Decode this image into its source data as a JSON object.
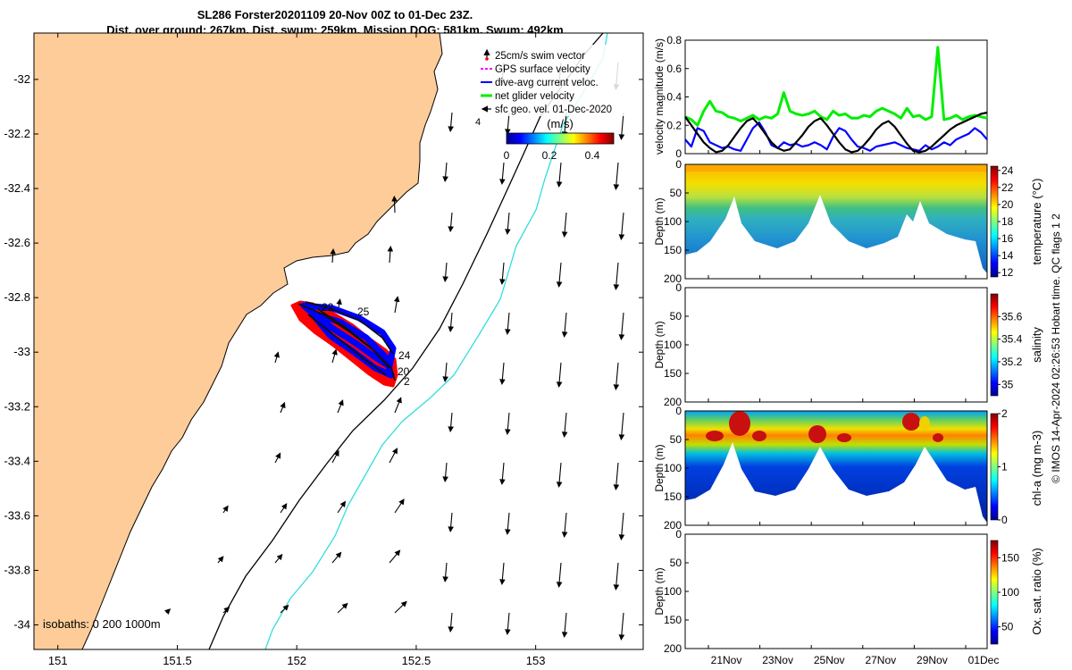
{
  "title": {
    "line1": "SL286 Forster20201109 20-Nov 00Z to 01-Dec 23Z.",
    "line2": "Dist. over ground: 267km. Dist. swum: 259km. Mission DOG: 581km. Swum: 492km"
  },
  "copyright": "© IMOS 14-Apr-2024 02:26:53 Hobart time. QC flags 1  2",
  "chart_data": [
    {
      "type": "map",
      "id": "track-map",
      "x_ticks": [
        "151",
        "151.5",
        "152",
        "152.5",
        "153"
      ],
      "y_ticks": [
        "-32",
        "-32.2",
        "-32.4",
        "-32.6",
        "-32.8",
        "-33",
        "-33.2",
        "-33.4",
        "-33.6",
        "-33.8",
        "-34"
      ],
      "xlim": [
        150.9,
        153.45
      ],
      "ylim": [
        -34.09,
        -31.83
      ],
      "legend": [
        {
          "label": "25cm/s swim vector",
          "color": "#000000",
          "marker": "arrow-red-dot"
        },
        {
          "label": "GPS surface velocity",
          "color": "#ff00ff",
          "marker": "dash"
        },
        {
          "label": "dive-avg current veloc.",
          "color": "#0000ff",
          "marker": "line"
        },
        {
          "label": "net glider velocity",
          "color": "#00ee00",
          "marker": "thick-line"
        },
        {
          "label": "sfc geo. vel. 01-Dec-2020",
          "color": "#000000",
          "marker": "arrow"
        }
      ],
      "colorbar": {
        "label": "(m/s)",
        "ticks": [
          "0",
          "0.2",
          "0.4"
        ],
        "range": [
          0,
          0.5
        ]
      },
      "isobath_label": "isobaths: 0  200  1000m",
      "track_labels": [
        "22",
        "25",
        "24",
        "20",
        "2",
        "4"
      ]
    },
    {
      "type": "line",
      "id": "velocity",
      "ylabel": "velocity magnitude (m/s)",
      "ylim": [
        0,
        0.8
      ],
      "y_ticks": [
        "0",
        "0.2",
        "0.4",
        "0.6",
        "0.8"
      ],
      "series": [
        {
          "name": "net glider velocity",
          "color": "#00ee00",
          "values": [
            0.26,
            0.24,
            0.2,
            0.3,
            0.37,
            0.3,
            0.29,
            0.26,
            0.25,
            0.23,
            0.25,
            0.27,
            0.24,
            0.26,
            0.25,
            0.28,
            0.43,
            0.3,
            0.28,
            0.27,
            0.28,
            0.3,
            0.26,
            0.24,
            0.3,
            0.27,
            0.28,
            0.25,
            0.25,
            0.27,
            0.26,
            0.3,
            0.32,
            0.3,
            0.28,
            0.25,
            0.32,
            0.26,
            0.27,
            0.24,
            0.26,
            0.75,
            0.24,
            0.25,
            0.27,
            0.24,
            0.26,
            0.27,
            0.26,
            0.25
          ]
        },
        {
          "name": "dive-avg current veloc.",
          "color": "#0000ff",
          "values": [
            0.1,
            0.05,
            0.18,
            0.16,
            0.08,
            0.06,
            0.04,
            0.05,
            0.03,
            0.02,
            0.1,
            0.18,
            0.22,
            0.15,
            0.06,
            0.04,
            0.08,
            0.06,
            0.07,
            0.05,
            0.06,
            0.08,
            0.06,
            0.03,
            0.12,
            0.18,
            0.16,
            0.1,
            0.05,
            0.04,
            0.02,
            0.05,
            0.06,
            0.07,
            0.08,
            0.06,
            0.04,
            0.03,
            0.02,
            0.06,
            0.03,
            0.05,
            0.08,
            0.06,
            0.1,
            0.12,
            0.14,
            0.18,
            0.15,
            0.1
          ]
        },
        {
          "name": "sfc geo. velocity",
          "color": "#000000",
          "values": [
            0.26,
            0.2,
            0.14,
            0.08,
            0.04,
            0.01,
            0.02,
            0.06,
            0.12,
            0.18,
            0.23,
            0.25,
            0.2,
            0.14,
            0.08,
            0.04,
            0.02,
            0.03,
            0.08,
            0.13,
            0.19,
            0.23,
            0.25,
            0.2,
            0.14,
            0.08,
            0.03,
            0.01,
            0.02,
            0.06,
            0.11,
            0.17,
            0.21,
            0.23,
            0.19,
            0.13,
            0.07,
            0.02,
            0.01,
            0.02,
            0.05,
            0.09,
            0.13,
            0.17,
            0.2,
            0.22,
            0.24,
            0.26,
            0.28,
            0.29
          ]
        }
      ]
    },
    {
      "type": "heatmap",
      "id": "temperature",
      "ylabel": "Depth (m)",
      "cbar_label": "temperature (°C)",
      "y_ticks": [
        "0",
        "50",
        "100",
        "150",
        "200"
      ],
      "ylim": [
        0,
        200
      ],
      "cbar_ticks": [
        "12",
        "14",
        "16",
        "18",
        "20",
        "22",
        "24"
      ],
      "cbar_range": [
        11.5,
        24.5
      ]
    },
    {
      "type": "heatmap",
      "id": "salinity",
      "ylabel": "Depth (m)",
      "cbar_label": "salinity",
      "y_ticks": [
        "0",
        "50",
        "100",
        "150",
        "200"
      ],
      "ylim": [
        0,
        200
      ],
      "cbar_ticks": [
        "35",
        "35.2",
        "35.4",
        "35.6"
      ],
      "cbar_range": [
        34.9,
        35.8
      ]
    },
    {
      "type": "heatmap",
      "id": "chla",
      "ylabel": "Depth (m)",
      "cbar_label": "chl-a (mg m-3)",
      "y_ticks": [
        "0",
        "50",
        "100",
        "150",
        "200"
      ],
      "ylim": [
        0,
        200
      ],
      "cbar_ticks": [
        "0",
        "1",
        "2"
      ],
      "cbar_range": [
        0,
        2
      ]
    },
    {
      "type": "heatmap",
      "id": "oxygen",
      "ylabel": "Depth (m)",
      "cbar_label": "Ox. sat. ratio (%)",
      "y_ticks": [
        "0",
        "50",
        "100",
        "150",
        "200"
      ],
      "ylim": [
        0,
        200
      ],
      "cbar_ticks": [
        "50",
        "100",
        "150"
      ],
      "cbar_range": [
        25,
        175
      ]
    }
  ],
  "time_axis": {
    "ticks": [
      "21Nov",
      "23Nov",
      "25Nov",
      "27Nov",
      "29Nov",
      "01Dec"
    ]
  },
  "colors": {
    "land": "#fdcc99",
    "iso200": "#000000",
    "iso1000": "#33dddd",
    "track_red": "#ff0000",
    "track_blue": "#0000ff"
  }
}
